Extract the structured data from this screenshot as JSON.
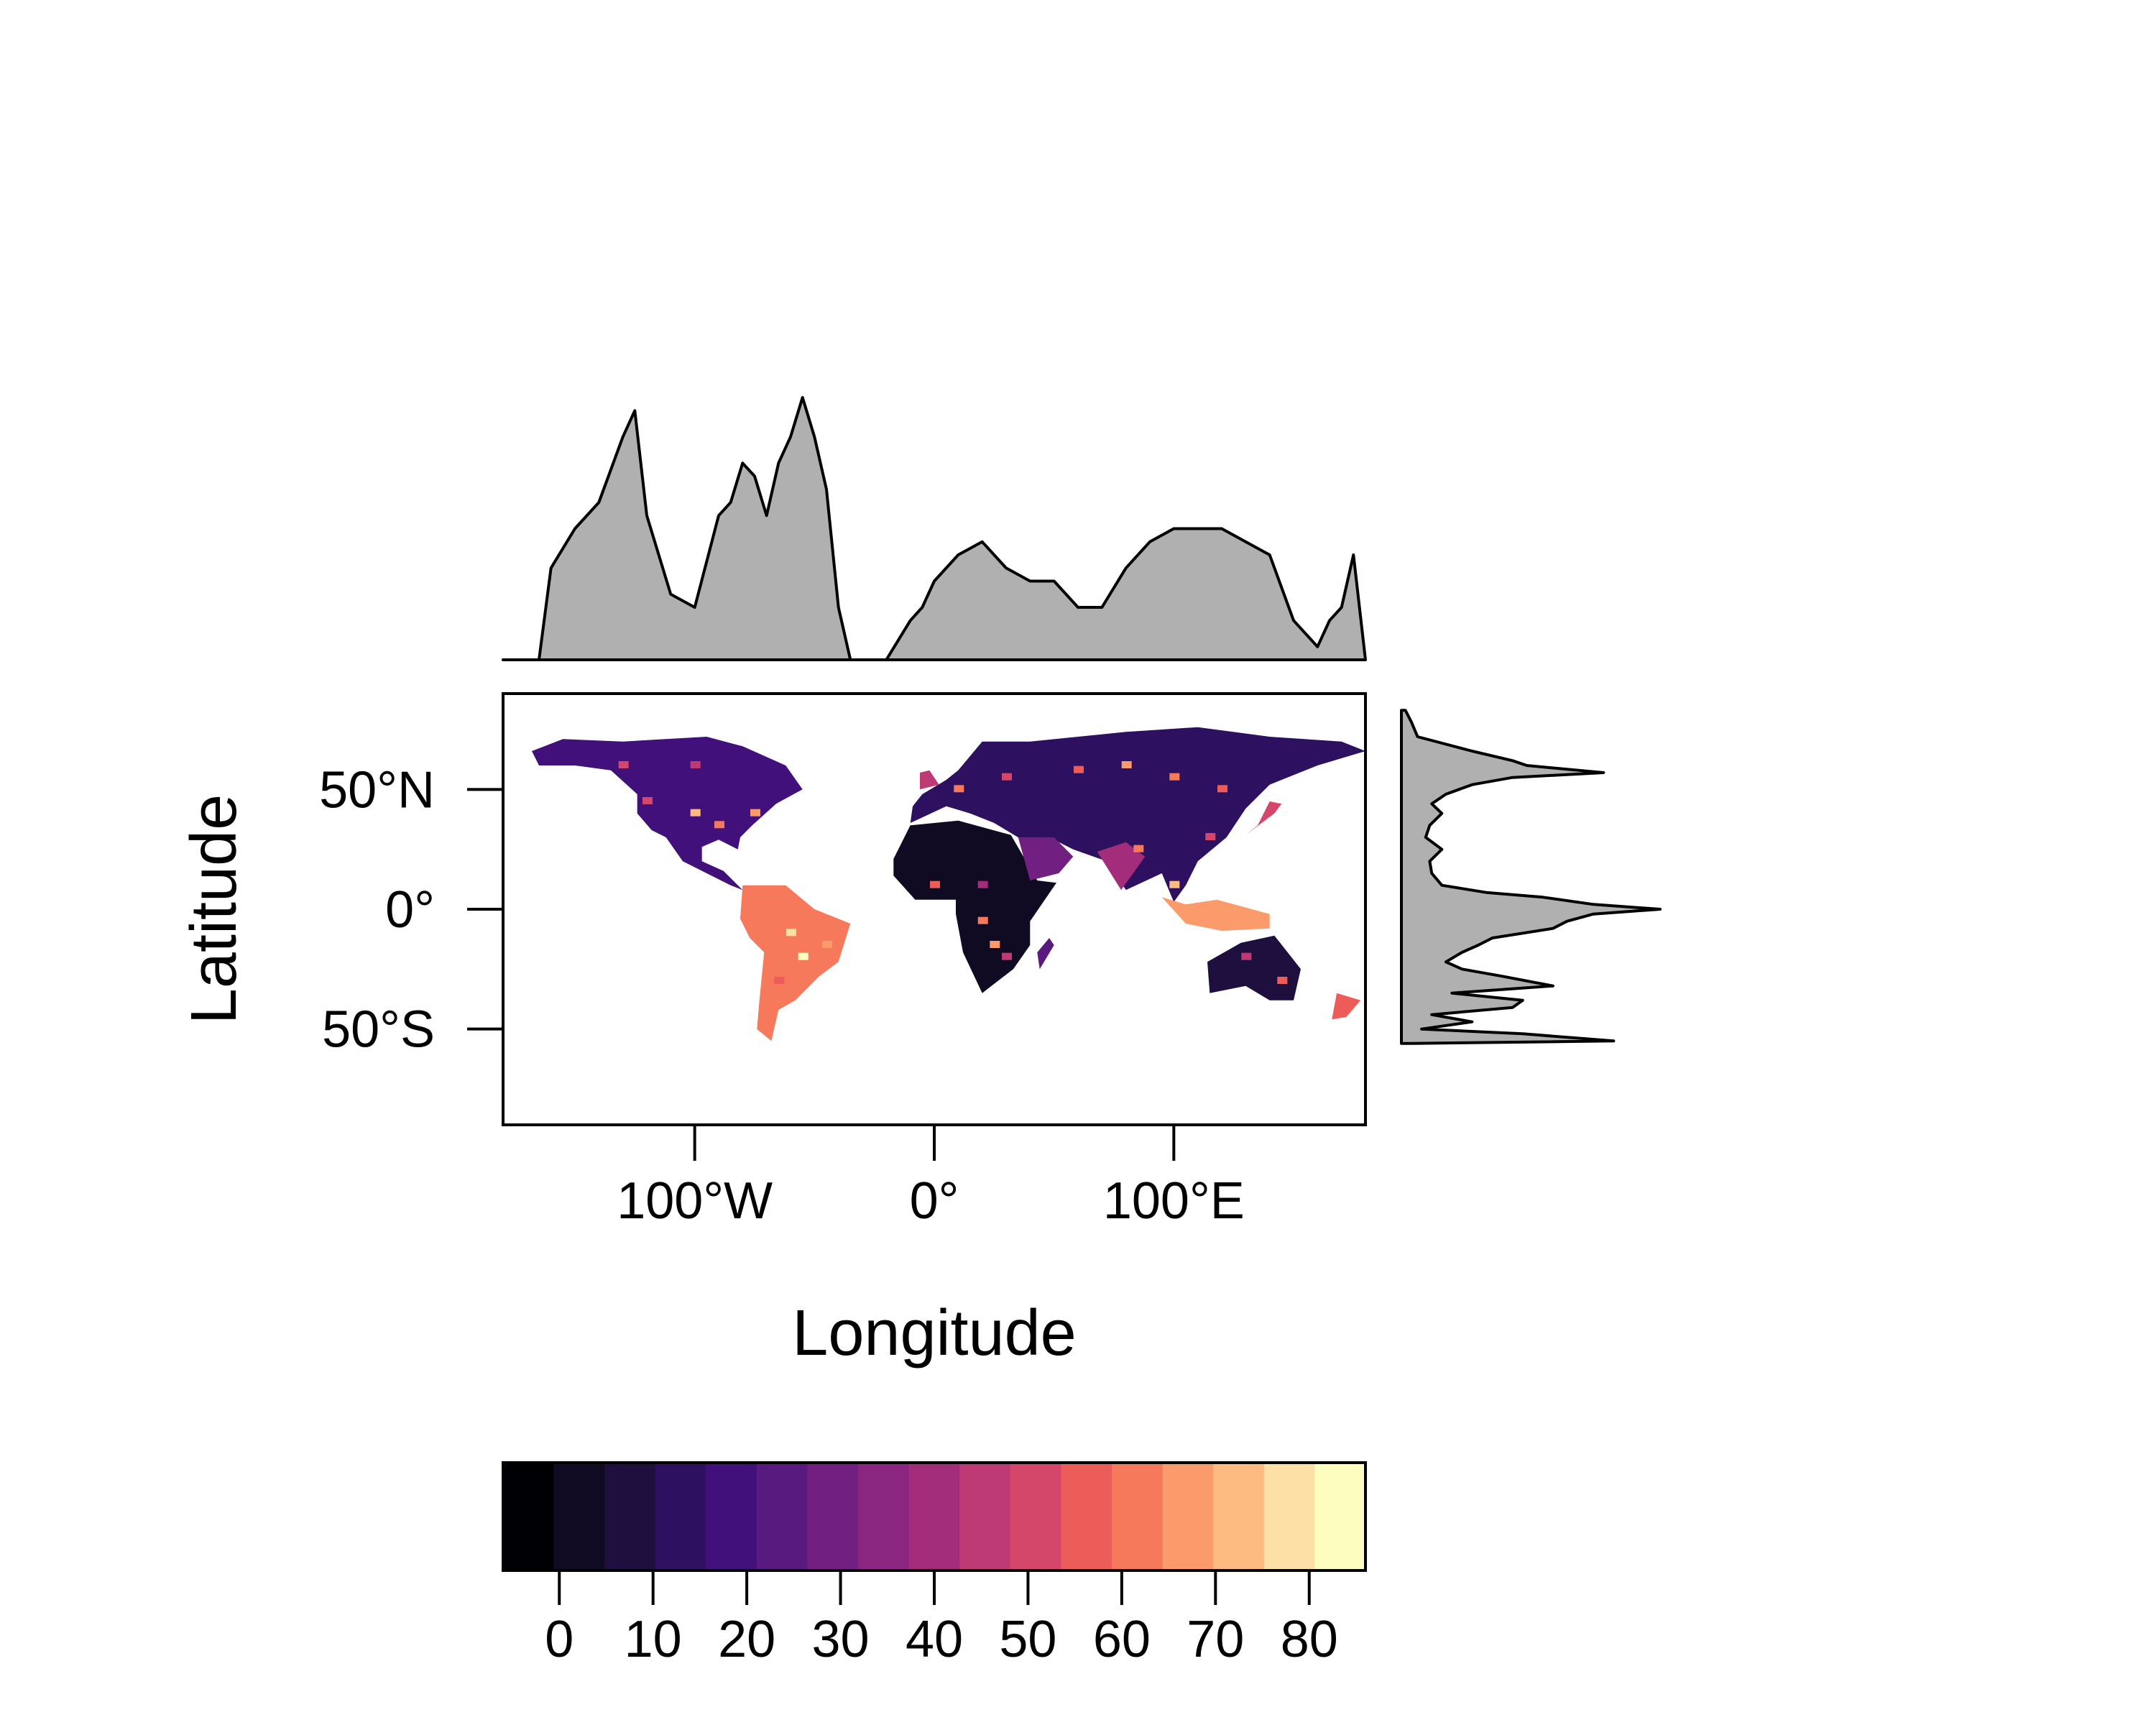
{
  "chart_data": {
    "type": "heatmap",
    "xlabel": "Longitude",
    "ylabel": "Latitude",
    "x_range": [
      -180,
      180
    ],
    "y_range": [
      -90,
      90
    ],
    "x_ticks": [
      {
        "value": -100,
        "label": "100°W"
      },
      {
        "value": 0,
        "label": "0°"
      },
      {
        "value": 100,
        "label": "100°E"
      }
    ],
    "y_ticks": [
      {
        "value": 50,
        "label": "50°N"
      },
      {
        "value": 0,
        "label": "0°"
      },
      {
        "value": -50,
        "label": "50°S"
      }
    ],
    "colorbar": {
      "range": [
        -6,
        86
      ],
      "ticks": [
        0,
        10,
        20,
        30,
        40,
        50,
        60,
        70,
        80
      ],
      "tick_labels": [
        "0",
        "10",
        "20",
        "30",
        "40",
        "50",
        "60",
        "70",
        "80"
      ],
      "colors": [
        "#000004",
        "#100b23",
        "#1e0f3f",
        "#2d1160",
        "#42107a",
        "#591a80",
        "#711f81",
        "#8a2680",
        "#a32d7b",
        "#bd3a74",
        "#d4466a",
        "#ec5d59",
        "#f7795c",
        "#fb9a6a",
        "#fdbb82",
        "#fde0a5",
        "#fcfdbf"
      ]
    },
    "top_marginal": {
      "description_type": "area",
      "fill": "#b0b0b0",
      "x": [
        -180,
        -165,
        -160,
        -150,
        -140,
        -130,
        -125,
        -120,
        -110,
        -100,
        -90,
        -85,
        -80,
        -75,
        -70,
        -65,
        -60,
        -55,
        -50,
        -45,
        -40,
        -35,
        -30,
        -25,
        -20,
        -10,
        -5,
        0,
        10,
        20,
        30,
        40,
        50,
        60,
        70,
        80,
        90,
        100,
        110,
        120,
        130,
        140,
        150,
        160,
        165,
        170,
        175,
        180
      ],
      "y": [
        0,
        0,
        0.35,
        0.5,
        0.6,
        0.85,
        0.95,
        0.55,
        0.25,
        0.2,
        0.55,
        0.6,
        0.75,
        0.7,
        0.55,
        0.75,
        0.85,
        1.0,
        0.85,
        0.65,
        0.2,
        0,
        0,
        0,
        0,
        0.15,
        0.2,
        0.3,
        0.4,
        0.45,
        0.35,
        0.3,
        0.3,
        0.2,
        0.2,
        0.35,
        0.45,
        0.5,
        0.5,
        0.5,
        0.45,
        0.4,
        0.15,
        0.05,
        0.15,
        0.2,
        0.4,
        0
      ]
    },
    "right_marginal": {
      "fill": "#b0b0b0",
      "lat": [
        83,
        78,
        72,
        66,
        62,
        60,
        57,
        55,
        52,
        48,
        44,
        40,
        35,
        30,
        25,
        20,
        15,
        10,
        7,
        5,
        2,
        0,
        -2,
        -5,
        -8,
        -12,
        -15,
        -18,
        -22,
        -25,
        -28,
        -32,
        -35,
        -38,
        -41,
        -44,
        -47,
        -50,
        -52,
        -55,
        -56
      ],
      "value": [
        0.02,
        0.05,
        0.08,
        0.35,
        0.55,
        0.62,
        1.0,
        0.55,
        0.35,
        0.22,
        0.15,
        0.2,
        0.14,
        0.12,
        0.2,
        0.14,
        0.15,
        0.2,
        0.42,
        0.7,
        0.95,
        1.28,
        0.95,
        0.82,
        0.75,
        0.45,
        0.38,
        0.3,
        0.22,
        0.3,
        0.5,
        0.75,
        0.25,
        0.6,
        0.55,
        0.15,
        0.35,
        0.1,
        0.6,
        1.05,
        0.05
      ]
    }
  }
}
